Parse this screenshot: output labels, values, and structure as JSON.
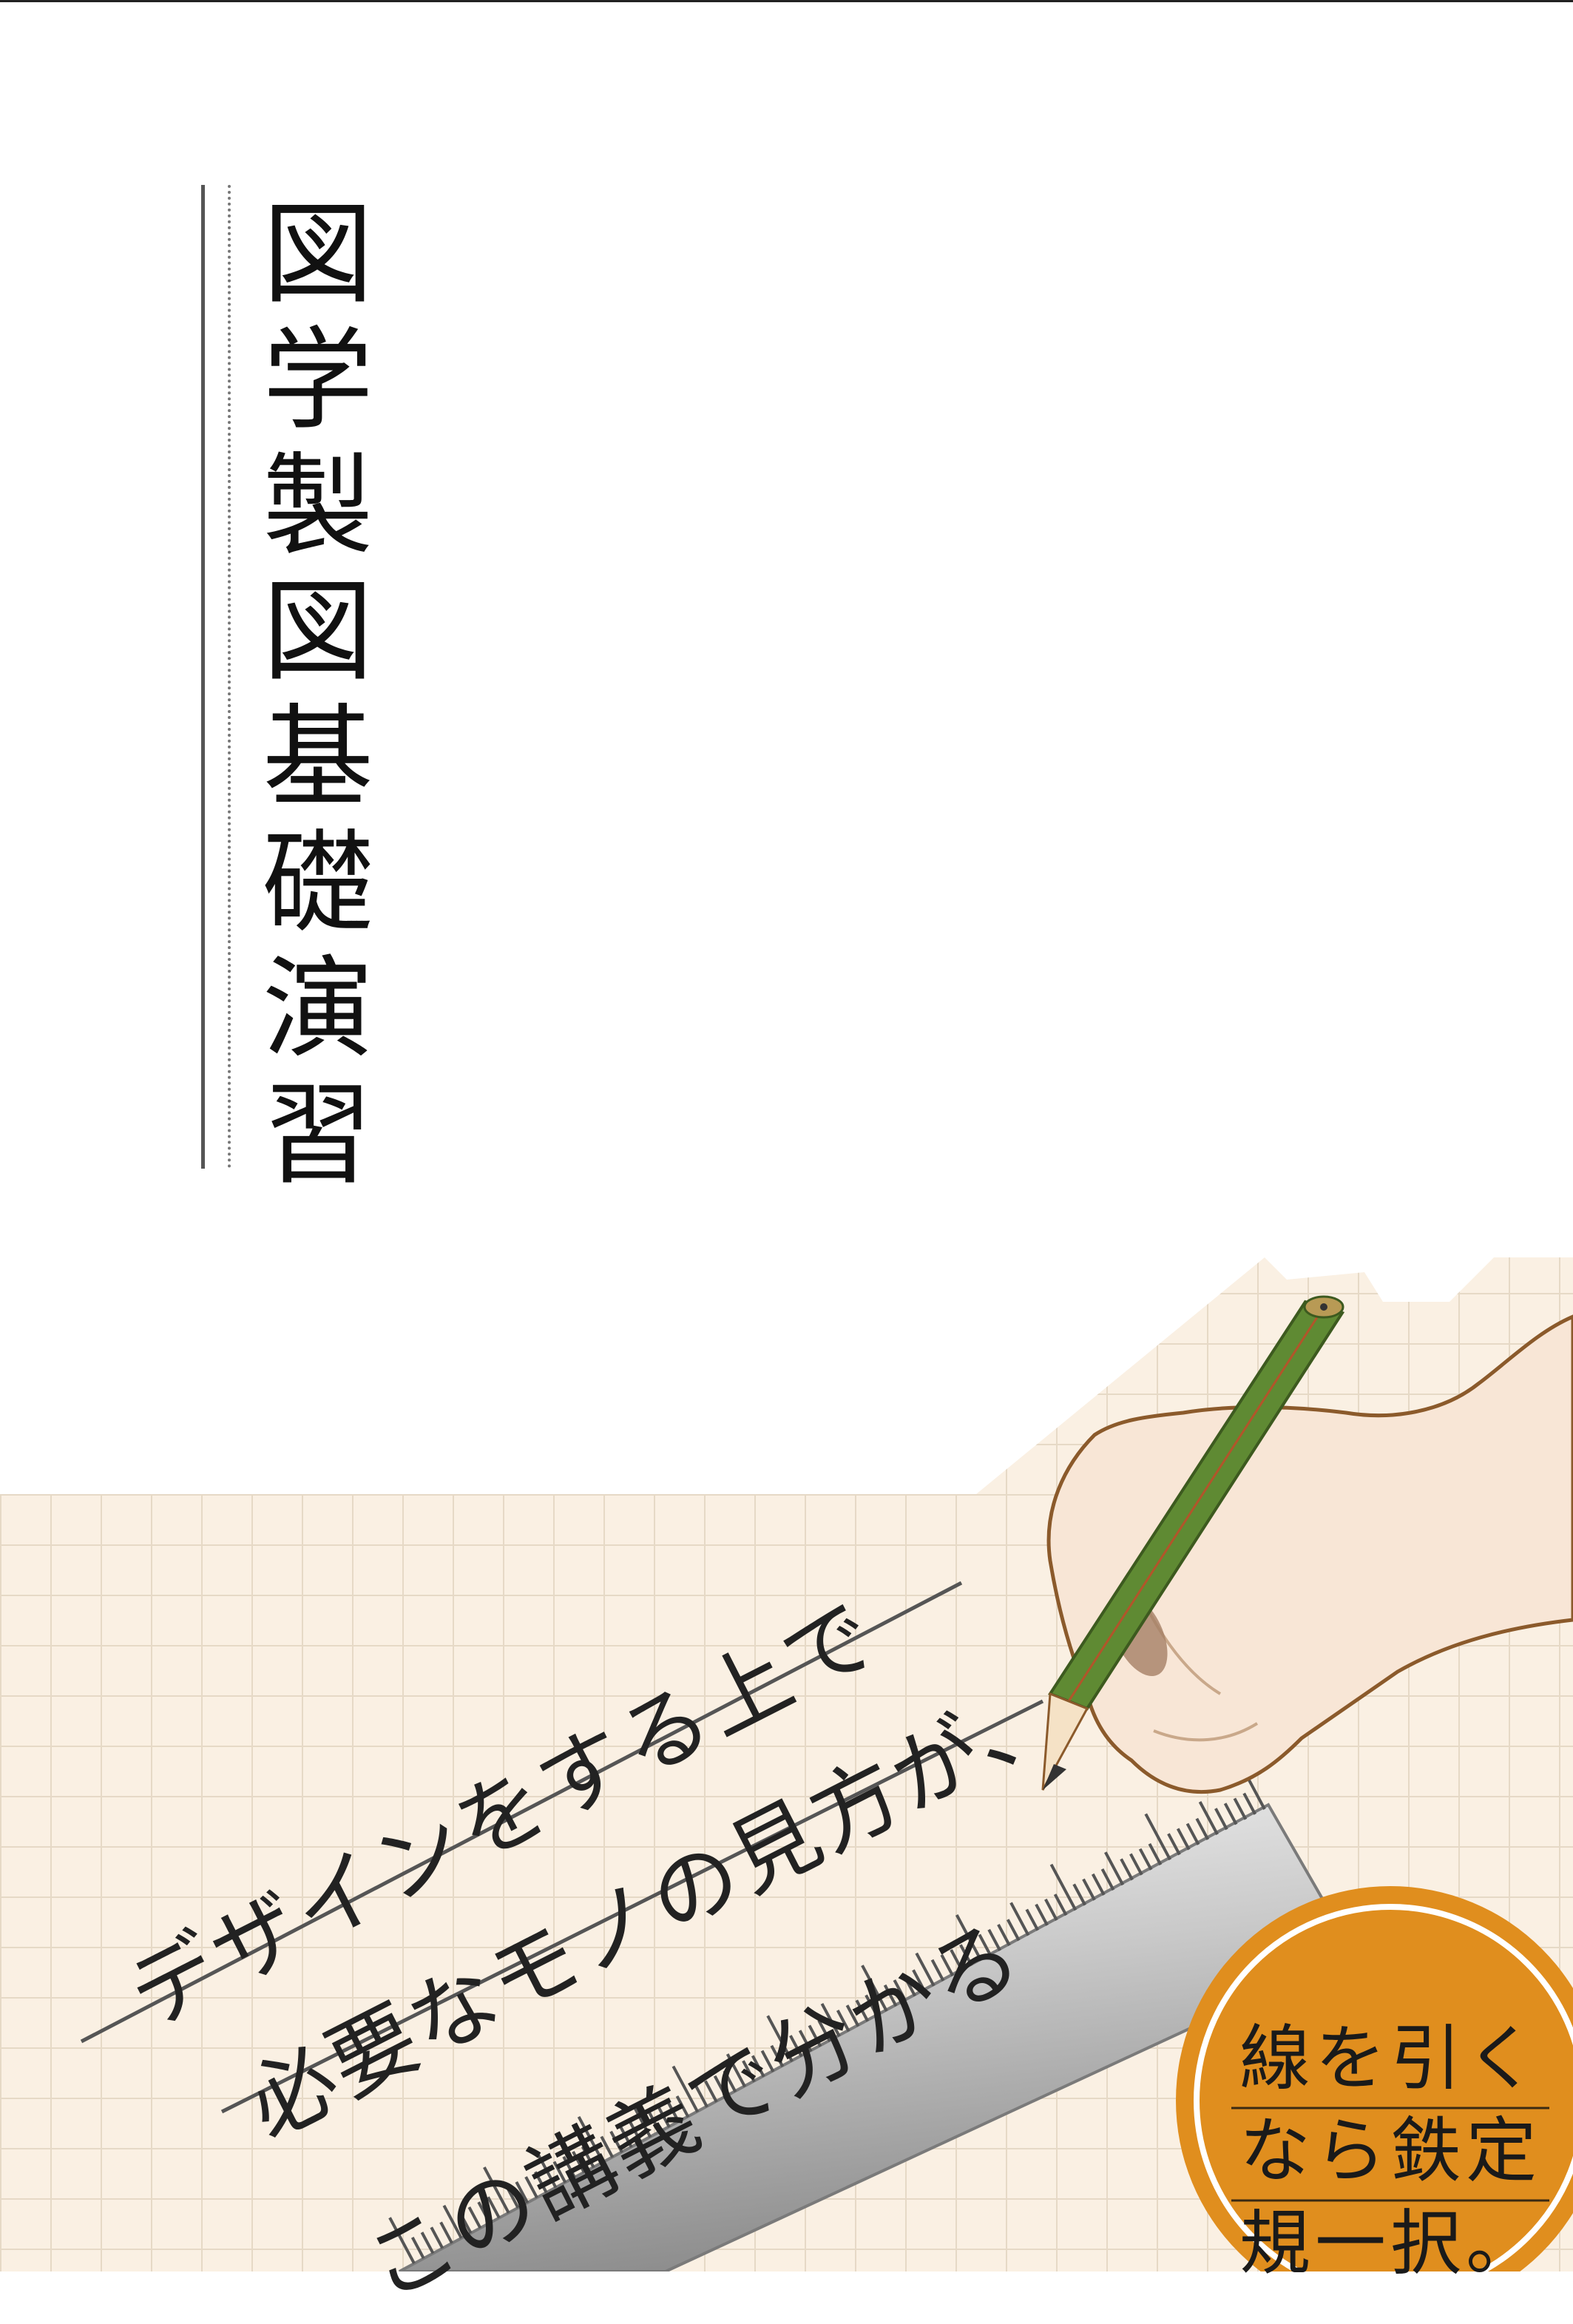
{
  "title_chars": [
    "図",
    "学",
    "製",
    "図",
    "基",
    "礎",
    "演",
    "習"
  ],
  "tagline": {
    "line1": "デザインをする上で",
    "line2": "必要なモノの見方が、",
    "line3": "この講義で分かる"
  },
  "badge": {
    "line1": "線を引く",
    "line2": "なら鉄定",
    "line3": "規一択。"
  },
  "colors": {
    "paper": "#faf0e3",
    "grid": "#e6d9c6",
    "badge_fill": "#e08e1e",
    "pencil_green": "#5f8a33",
    "skin": "#f8e6d6",
    "ruler_light": "#ececec",
    "ruler_dark": "#9a9a9a"
  }
}
